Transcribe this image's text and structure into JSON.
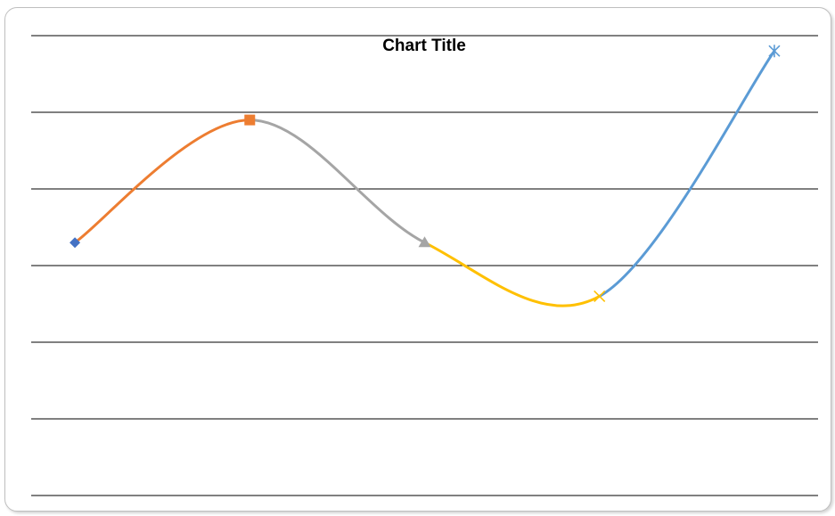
{
  "chart_data": {
    "type": "line",
    "title": "Chart Title",
    "xlabel": "",
    "ylabel": "",
    "ylim": [
      0,
      6
    ],
    "xlim": [
      0.5,
      9.5
    ],
    "grid": true,
    "smooth": true,
    "series": [
      {
        "x": [
          1,
          3
        ],
        "values": [
          3.3,
          4.9
        ],
        "color": "#ED7D31",
        "marker": "diamond",
        "marker_color": "#4472C4"
      },
      {
        "x": [
          3,
          5
        ],
        "values": [
          4.9,
          3.3
        ],
        "color": "#A5A5A5",
        "marker": "square",
        "marker_color": "#ED7D31"
      },
      {
        "x": [
          5,
          7
        ],
        "values": [
          3.3,
          2.6
        ],
        "color": "#FFC000",
        "marker": "triangle",
        "marker_color": "#A5A5A5"
      },
      {
        "x": [
          7,
          9
        ],
        "values": [
          2.6,
          5.8
        ],
        "color": "#5B9BD5",
        "marker": "x",
        "marker_color": "#FFC000",
        "end_marker": "star",
        "end_marker_color": "#5B9BD5"
      }
    ]
  }
}
